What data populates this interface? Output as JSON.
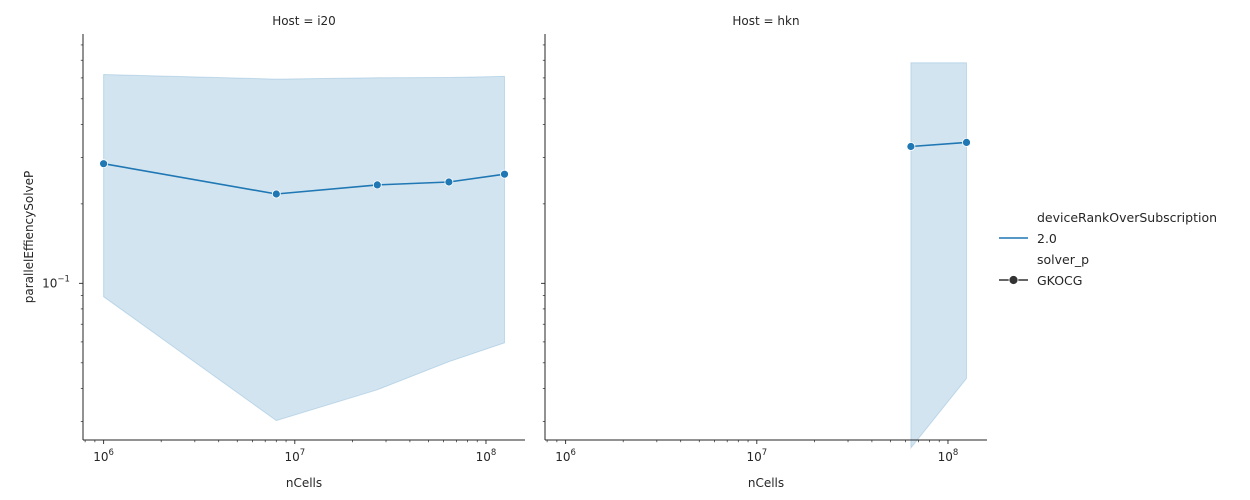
{
  "chart_data": [
    {
      "type": "line",
      "title": "Host = i20",
      "xlabel": "nCells",
      "ylabel": "parallelEffiencySolveP",
      "xscale": "log",
      "yscale": "log",
      "xlim": [
        780000,
        160000000
      ],
      "ylim": [
        0.0255,
        0.88
      ],
      "x_tick_labels": [
        "10^6",
        "10^7",
        "10^8"
      ],
      "y_tick_labels": [
        "10^-1"
      ],
      "grid": false,
      "series": [
        {
          "name": "2.0",
          "x": [
            1000000,
            8000000,
            27000000,
            64000000,
            125000000
          ],
          "y": [
            0.284,
            0.218,
            0.236,
            0.242,
            0.259
          ],
          "ci_upper": [
            0.618,
            0.594,
            0.601,
            0.602,
            0.608
          ],
          "ci_lower": [
            0.089,
            0.0302,
            0.0395,
            0.0505,
            0.0595
          ],
          "color": "#1f77b4"
        }
      ]
    },
    {
      "type": "line",
      "title": "Host = hkn",
      "xlabel": "nCells",
      "xscale": "log",
      "yscale": "log",
      "xlim": [
        780000,
        160000000
      ],
      "ylim": [
        0.0255,
        0.88
      ],
      "x_tick_labels": [
        "10^6",
        "10^7",
        "10^8"
      ],
      "grid": false,
      "series": [
        {
          "name": "2.0",
          "x": [
            64000000,
            125000000
          ],
          "y": [
            0.33,
            0.342
          ],
          "ci_upper": [
            0.685,
            0.685
          ],
          "ci_lower": [
            0.0238,
            0.0436
          ],
          "color": "#1f77b4"
        }
      ]
    }
  ],
  "legend": {
    "placement": "right",
    "hue_title": "deviceRankOverSubscription",
    "hue_label": "2.0",
    "style_title": "solver_p",
    "style_label": "GKOCG"
  }
}
